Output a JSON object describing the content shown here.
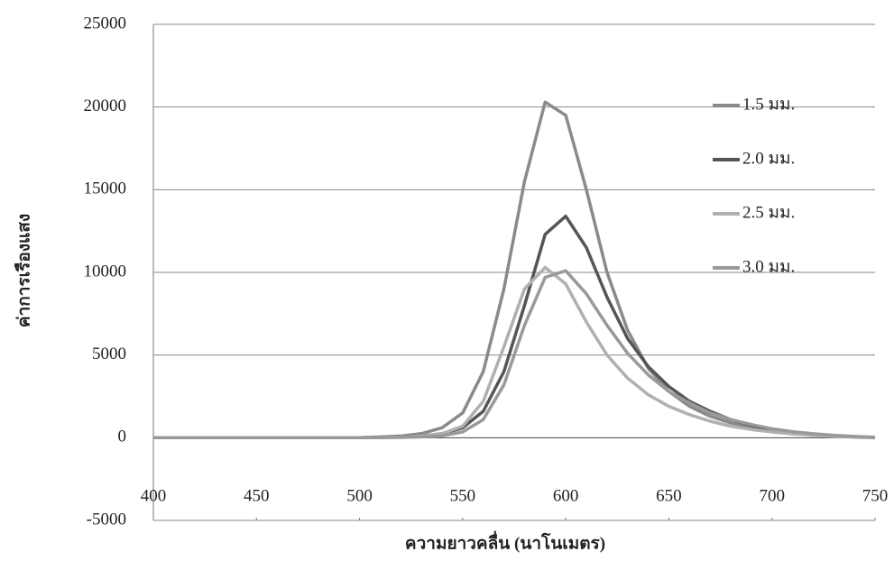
{
  "chart_data": {
    "type": "line",
    "y_label": "ค่าการเรืองแสง",
    "x_label": "ความยาวคลื่น (นาโนเมตร)",
    "x": [
      400,
      410,
      420,
      430,
      440,
      450,
      460,
      470,
      480,
      490,
      500,
      510,
      520,
      530,
      540,
      550,
      560,
      570,
      580,
      590,
      600,
      610,
      620,
      630,
      640,
      650,
      660,
      670,
      680,
      690,
      700,
      710,
      720,
      730,
      740,
      750
    ],
    "series": [
      {
        "name": "1.5 มม.",
        "color": "#8a8a8a",
        "values": [
          0,
          0,
          0,
          0,
          0,
          0,
          0,
          0,
          0,
          0,
          0,
          50,
          100,
          250,
          600,
          1500,
          4000,
          9000,
          15500,
          20300,
          19500,
          15000,
          10000,
          6500,
          4200,
          2800,
          1900,
          1300,
          900,
          600,
          400,
          250,
          150,
          80,
          40,
          0
        ]
      },
      {
        "name": "2.0 มม.",
        "color": "#555555",
        "values": [
          0,
          0,
          0,
          0,
          0,
          0,
          0,
          0,
          0,
          0,
          0,
          20,
          50,
          100,
          250,
          600,
          1600,
          4000,
          8000,
          12300,
          13400,
          11500,
          8500,
          6000,
          4300,
          3100,
          2200,
          1600,
          1100,
          750,
          500,
          320,
          200,
          120,
          60,
          20
        ]
      },
      {
        "name": "2.5 มม.",
        "color": "#b0b0b0",
        "values": [
          0,
          0,
          0,
          0,
          0,
          0,
          0,
          0,
          0,
          0,
          0,
          20,
          40,
          100,
          250,
          700,
          2200,
          5500,
          9000,
          10300,
          9300,
          7000,
          5000,
          3600,
          2600,
          1900,
          1400,
          1000,
          700,
          500,
          350,
          230,
          150,
          90,
          50,
          20
        ]
      },
      {
        "name": "3.0 มม.",
        "color": "#999999",
        "values": [
          0,
          0,
          0,
          0,
          0,
          0,
          0,
          0,
          0,
          0,
          0,
          10,
          20,
          50,
          120,
          350,
          1100,
          3200,
          6800,
          9700,
          10100,
          8700,
          6800,
          5100,
          3800,
          2800,
          2100,
          1500,
          1100,
          800,
          550,
          370,
          240,
          150,
          80,
          30
        ]
      }
    ],
    "xlim": [
      400,
      750
    ],
    "xticks": [
      400,
      450,
      500,
      550,
      600,
      650,
      700,
      750
    ],
    "ylim": [
      -5000,
      25000
    ],
    "yticks": [
      -5000,
      0,
      5000,
      10000,
      15000,
      20000,
      25000
    ],
    "grid": true,
    "legend": "right"
  }
}
